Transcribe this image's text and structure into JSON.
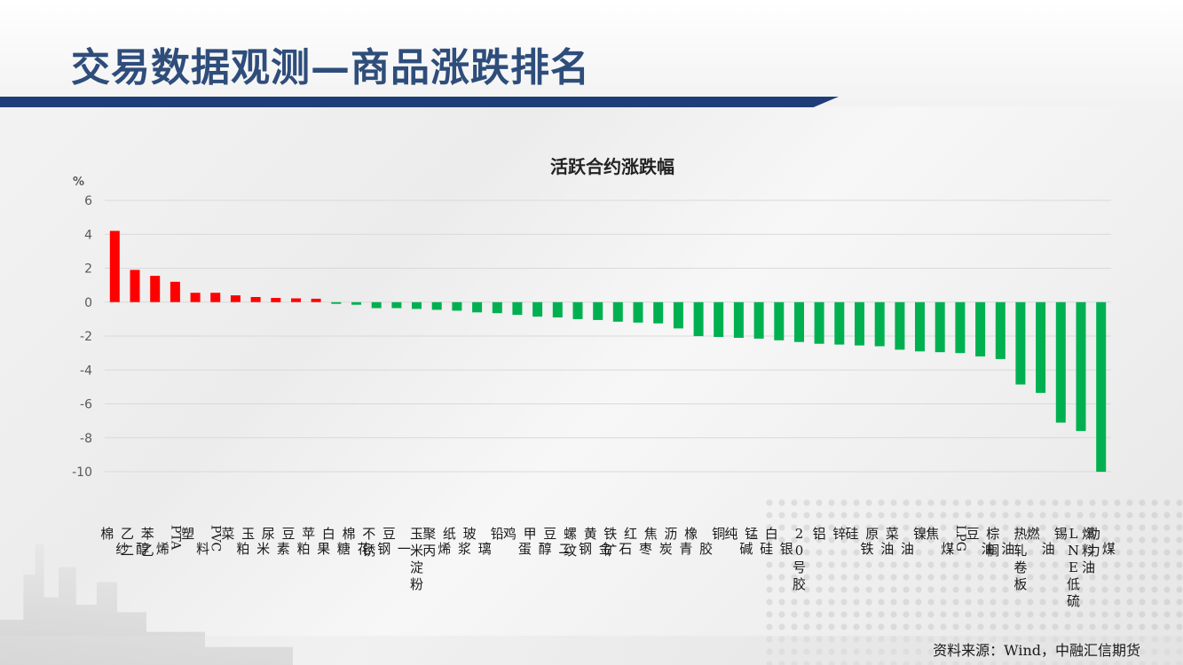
{
  "page": {
    "title": "交易数据观测—商品涨跌排名",
    "source": "资料来源：Wind，中融汇信期货"
  },
  "colors": {
    "positive": "#ff0000",
    "negative": "#00b050",
    "title_text": "#2e4d7b",
    "title_rule": "#1f3e78",
    "grid": "#d9d9d9",
    "axis_text": "#595959"
  },
  "chart_data": {
    "type": "bar",
    "title": "活跃合约涨跌幅",
    "ylabel": "%",
    "ylim": [
      -10,
      6
    ],
    "yticks": [
      6,
      4,
      2,
      0,
      -2,
      -4,
      -6,
      -8,
      -10
    ],
    "grid": true,
    "legend": "none",
    "categories": [
      "棉纱",
      "乙二醇",
      "苯乙烯",
      "PTA",
      "塑料",
      "PVC",
      "菜粕",
      "玉米",
      "尿素",
      "豆粕",
      "苹果",
      "白糖",
      "棉花",
      "不锈钢",
      "豆一",
      "玉米淀粉",
      "聚丙烯",
      "纸浆",
      "玻璃",
      "铅",
      "鸡蛋",
      "甲醇",
      "豆二",
      "螺纹钢",
      "黄金",
      "铁矿石",
      "红枣",
      "焦炭",
      "沥青",
      "橡胶",
      "铜",
      "纯碱",
      "锰硅",
      "白银",
      "20号胶",
      "铝",
      "锌",
      "硅铁",
      "原油",
      "菜油",
      "镍",
      "焦煤",
      "LPG",
      "豆油",
      "棕榈油",
      "热轧卷板",
      "燃油",
      "锡",
      "LNE低硫燃料油",
      "动力煤"
    ],
    "values": [
      4.2,
      1.9,
      1.55,
      1.2,
      0.55,
      0.55,
      0.4,
      0.3,
      0.25,
      0.22,
      0.2,
      -0.1,
      -0.15,
      -0.35,
      -0.35,
      -0.4,
      -0.45,
      -0.5,
      -0.6,
      -0.65,
      -0.75,
      -0.85,
      -0.9,
      -1.0,
      -1.05,
      -1.15,
      -1.2,
      -1.25,
      -1.55,
      -2.0,
      -2.05,
      -2.1,
      -2.15,
      -2.25,
      -2.35,
      -2.45,
      -2.5,
      -2.55,
      -2.6,
      -2.8,
      -2.9,
      -2.95,
      -3.0,
      -3.2,
      -3.35,
      -4.85,
      -5.35,
      -7.1,
      -7.6,
      -10.0
    ]
  }
}
